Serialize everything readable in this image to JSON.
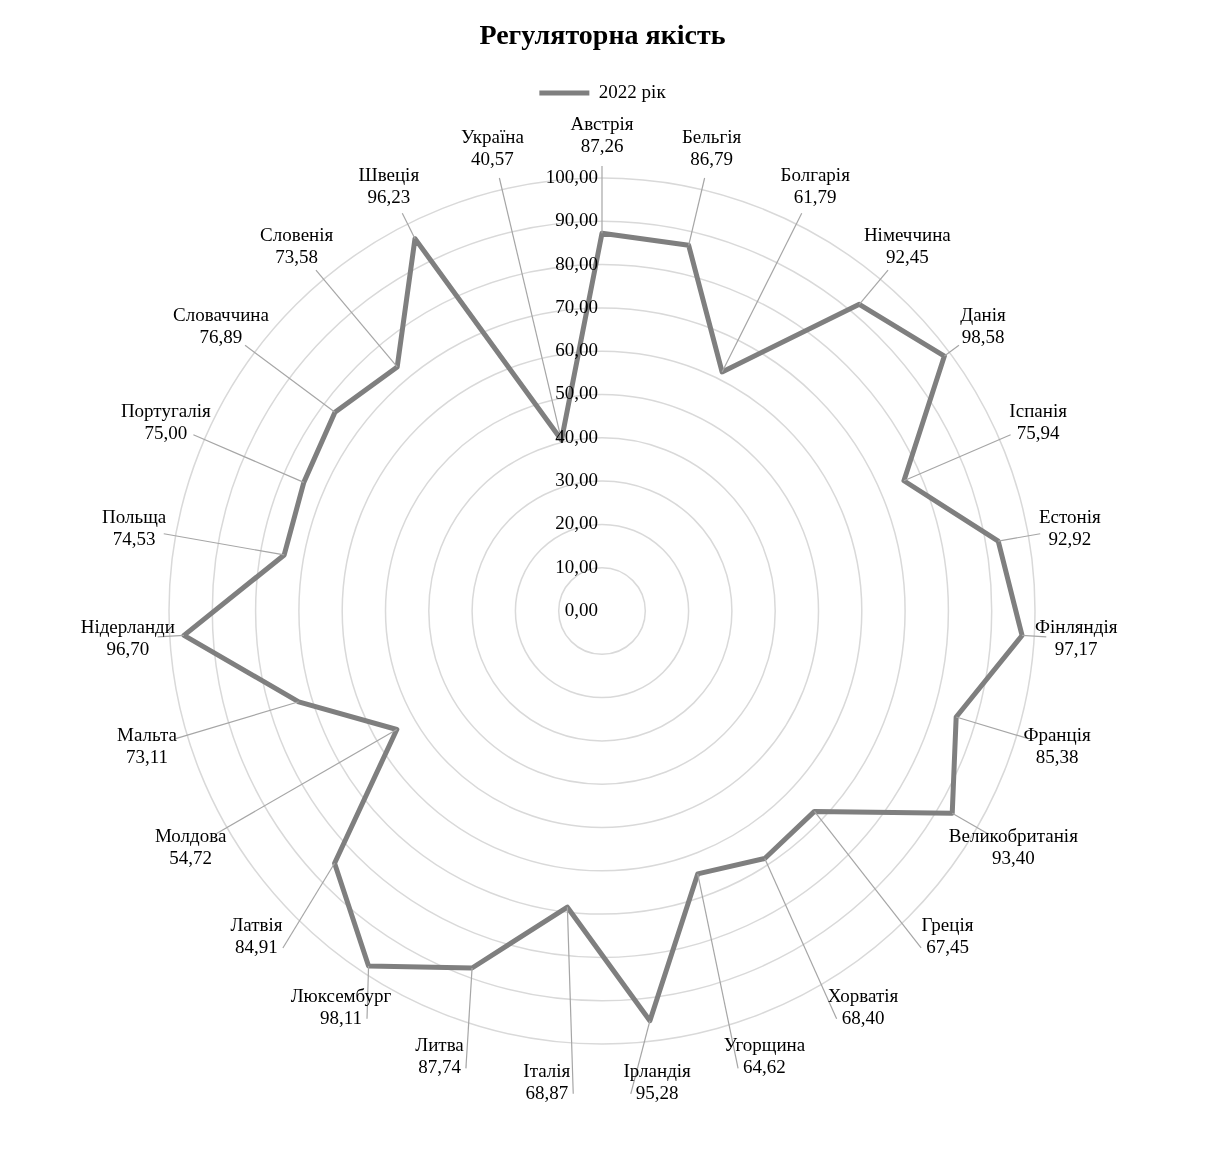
{
  "chart_data": {
    "type": "radar",
    "title": "Регуляторна якість",
    "categories": [
      "Австрія",
      "Бельгія",
      "Болгарія",
      "Німеччина",
      "Данія",
      "Іспанія",
      "Естонія",
      "Фінляндія",
      "Франція",
      "Великобританія",
      "Греція",
      "Хорватія",
      "Угорщина",
      "Ірландія",
      "Італія",
      "Литва",
      "Люксембург",
      "Латвія",
      "Молдова",
      "Мальта",
      "Нідерланди",
      "Польща",
      "Португалія",
      "Словаччина",
      "Словенія",
      "Швеція",
      "Україна"
    ],
    "series": [
      {
        "name": "2022 рік",
        "color": "#7f7f7f",
        "values": [
          87.26,
          86.79,
          61.79,
          92.45,
          98.58,
          75.94,
          92.92,
          97.17,
          85.38,
          93.4,
          67.45,
          68.4,
          64.62,
          95.28,
          68.87,
          87.74,
          98.11,
          84.91,
          54.72,
          73.11,
          96.7,
          74.53,
          75.0,
          76.89,
          73.58,
          96.23,
          40.57
        ],
        "value_labels": [
          "87,26",
          "86,79",
          "61,79",
          "92,45",
          "98,58",
          "75,94",
          "92,92",
          "97,17",
          "85,38",
          "93,40",
          "67,45",
          "68,40",
          "64,62",
          "95,28",
          "68,87",
          "87,74",
          "98,11",
          "84,91",
          "54,72",
          "73,11",
          "96,70",
          "74,53",
          "75,00",
          "76,89",
          "73,58",
          "96,23",
          "40,57"
        ]
      }
    ],
    "ylim": [
      0,
      100
    ],
    "yticks": [
      {
        "value": 0,
        "label": "0,00"
      },
      {
        "value": 10,
        "label": "10,00"
      },
      {
        "value": 20,
        "label": "20,00"
      },
      {
        "value": 30,
        "label": "30,00"
      },
      {
        "value": 40,
        "label": "40,00"
      },
      {
        "value": 50,
        "label": "50,00"
      },
      {
        "value": 60,
        "label": "60,00"
      },
      {
        "value": 70,
        "label": "70,00"
      },
      {
        "value": 80,
        "label": "80,00"
      },
      {
        "value": 90,
        "label": "90,00"
      },
      {
        "value": 100,
        "label": "100,00"
      }
    ],
    "grid": true,
    "legend": "top",
    "marker": "none",
    "line_style": "solid"
  }
}
